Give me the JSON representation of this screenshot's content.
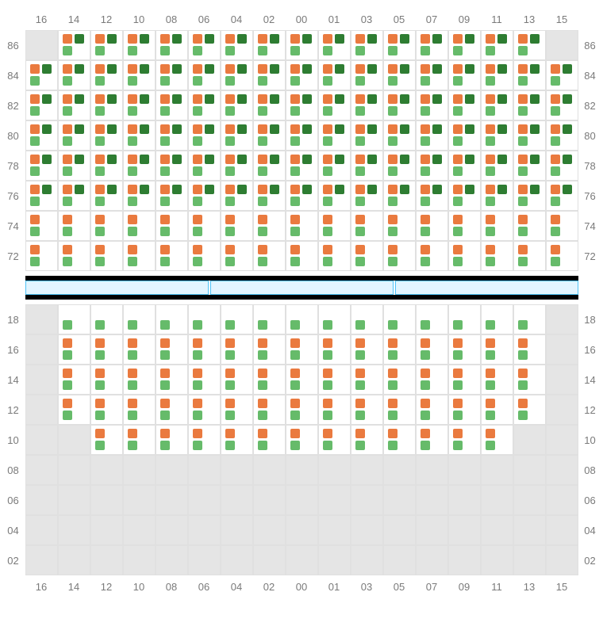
{
  "columns": [
    "16",
    "14",
    "12",
    "10",
    "08",
    "06",
    "04",
    "02",
    "00",
    "01",
    "03",
    "05",
    "07",
    "09",
    "11",
    "13",
    "15"
  ],
  "topRows": [
    "86",
    "84",
    "82",
    "80",
    "78",
    "76",
    "74",
    "72"
  ],
  "bottomRows": [
    "18",
    "16",
    "14",
    "12",
    "10",
    "08",
    "06",
    "04",
    "02"
  ],
  "colors": {
    "orange": "#ea7a3f",
    "darkGreen": "#2e7d32",
    "lightGreen": "#66bb6a",
    "emptyCell": "#e5e5e5",
    "cellBg": "#ffffff",
    "border": "#e0e0e0",
    "labelText": "#7a7a7a",
    "blackBand": "#000000",
    "blueBarFill": "#e3f5ff",
    "blueBarBorder": "#4fc3f7"
  },
  "patterns": {
    "full": [
      "orange",
      "dgreen",
      "lgreen",
      null
    ],
    "two": [
      "orange",
      null,
      "lgreen",
      null
    ],
    "green": [
      null,
      null,
      "lgreen",
      null
    ],
    "none": []
  },
  "topGrid": [
    [
      "none",
      "full",
      "full",
      "full",
      "full",
      "full",
      "full",
      "full",
      "full",
      "full",
      "full",
      "full",
      "full",
      "full",
      "full",
      "full",
      "none"
    ],
    [
      "full",
      "full",
      "full",
      "full",
      "full",
      "full",
      "full",
      "full",
      "full",
      "full",
      "full",
      "full",
      "full",
      "full",
      "full",
      "full",
      "full"
    ],
    [
      "full",
      "full",
      "full",
      "full",
      "full",
      "full",
      "full",
      "full",
      "full",
      "full",
      "full",
      "full",
      "full",
      "full",
      "full",
      "full",
      "full"
    ],
    [
      "full",
      "full",
      "full",
      "full",
      "full",
      "full",
      "full",
      "full",
      "full",
      "full",
      "full",
      "full",
      "full",
      "full",
      "full",
      "full",
      "full"
    ],
    [
      "full",
      "full",
      "full",
      "full",
      "full",
      "full",
      "full",
      "full",
      "full",
      "full",
      "full",
      "full",
      "full",
      "full",
      "full",
      "full",
      "full"
    ],
    [
      "full",
      "full",
      "full",
      "full",
      "full",
      "full",
      "full",
      "full",
      "full",
      "full",
      "full",
      "full",
      "full",
      "full",
      "full",
      "full",
      "full"
    ],
    [
      "two",
      "two",
      "two",
      "two",
      "two",
      "two",
      "two",
      "two",
      "two",
      "two",
      "two",
      "two",
      "two",
      "two",
      "two",
      "two",
      "two"
    ],
    [
      "two",
      "two",
      "two",
      "two",
      "two",
      "two",
      "two",
      "two",
      "two",
      "two",
      "two",
      "two",
      "two",
      "two",
      "two",
      "two",
      "two"
    ]
  ],
  "bottomGrid": [
    [
      "none",
      "green",
      "green",
      "green",
      "green",
      "green",
      "green",
      "green",
      "green",
      "green",
      "green",
      "green",
      "green",
      "green",
      "green",
      "green",
      "none"
    ],
    [
      "none",
      "two",
      "two",
      "two",
      "two",
      "two",
      "two",
      "two",
      "two",
      "two",
      "two",
      "two",
      "two",
      "two",
      "two",
      "two",
      "none"
    ],
    [
      "none",
      "two",
      "two",
      "two",
      "two",
      "two",
      "two",
      "two",
      "two",
      "two",
      "two",
      "two",
      "two",
      "two",
      "two",
      "two",
      "none"
    ],
    [
      "none",
      "two",
      "two",
      "two",
      "two",
      "two",
      "two",
      "two",
      "two",
      "two",
      "two",
      "two",
      "two",
      "two",
      "two",
      "two",
      "none"
    ],
    [
      "none",
      "none",
      "two",
      "two",
      "two",
      "two",
      "two",
      "two",
      "two",
      "two",
      "two",
      "two",
      "two",
      "two",
      "two",
      "none",
      "none"
    ],
    [
      "none",
      "none",
      "none",
      "none",
      "none",
      "none",
      "none",
      "none",
      "none",
      "none",
      "none",
      "none",
      "none",
      "none",
      "none",
      "none",
      "none"
    ],
    [
      "none",
      "none",
      "none",
      "none",
      "none",
      "none",
      "none",
      "none",
      "none",
      "none",
      "none",
      "none",
      "none",
      "none",
      "none",
      "none",
      "none"
    ],
    [
      "none",
      "none",
      "none",
      "none",
      "none",
      "none",
      "none",
      "none",
      "none",
      "none",
      "none",
      "none",
      "none",
      "none",
      "none",
      "none",
      "none"
    ],
    [
      "none",
      "none",
      "none",
      "none",
      "none",
      "none",
      "none",
      "none",
      "none",
      "none",
      "none",
      "none",
      "none",
      "none",
      "none",
      "none",
      "none"
    ]
  ],
  "dividerBars": 3
}
